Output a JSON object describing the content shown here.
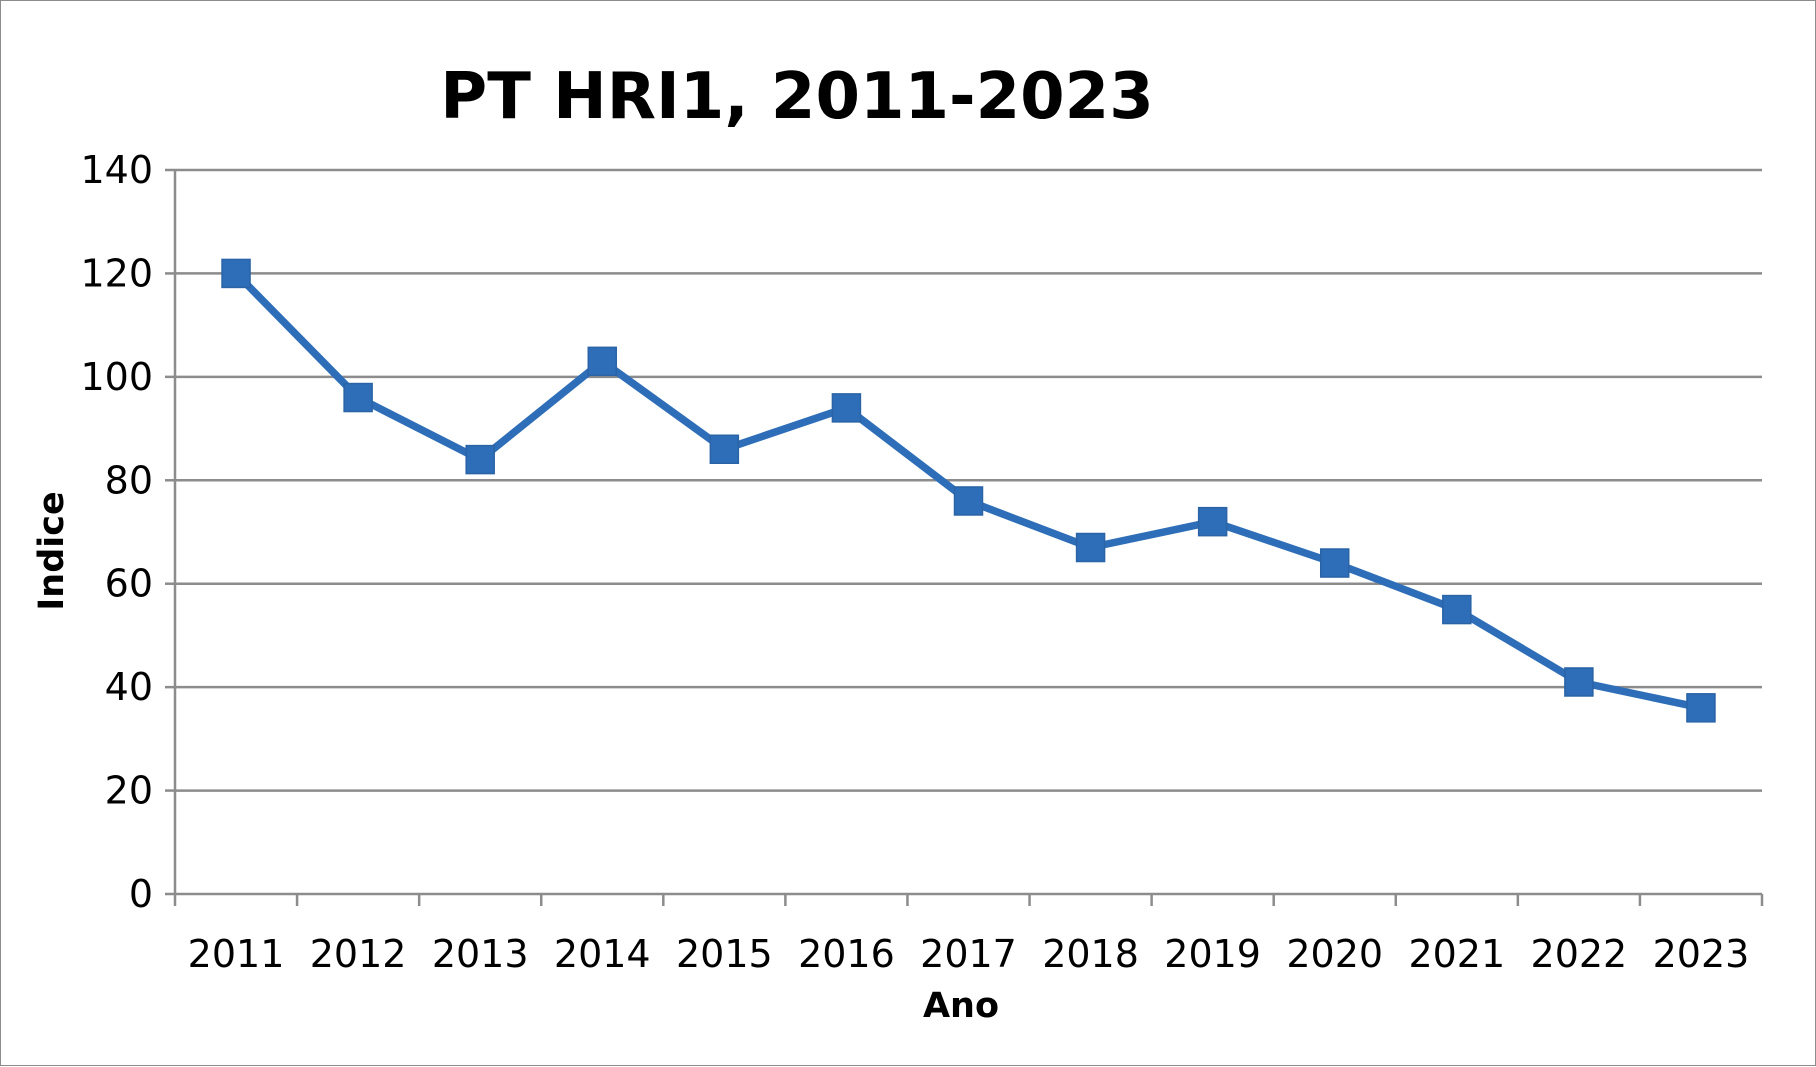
{
  "chart_data": {
    "type": "line",
    "title": "PT HRI1, 2011-2023",
    "xlabel": "Ano",
    "ylabel": "Indice",
    "categories": [
      "2011",
      "2012",
      "2013",
      "2014",
      "2015",
      "2016",
      "2017",
      "2018",
      "2019",
      "2020",
      "2021",
      "2022",
      "2023"
    ],
    "series": [
      {
        "values": [
          120,
          96,
          84,
          103,
          86,
          94,
          76,
          67,
          72,
          64,
          55,
          41,
          36
        ],
        "color": "#2E6EB8",
        "marker": "square"
      }
    ],
    "ylim": [
      0,
      140
    ],
    "yticks": [
      "0",
      "20",
      "40",
      "60",
      "80",
      "100",
      "120",
      "140"
    ],
    "grid": true,
    "legend": "none",
    "colors": {
      "gridline": "#8c8c8c",
      "axis": "#8c8c8c",
      "series": "#2E6EB8"
    }
  }
}
